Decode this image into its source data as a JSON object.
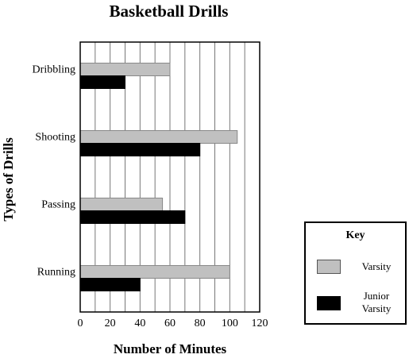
{
  "chart_data": {
    "type": "bar",
    "orientation": "horizontal",
    "title": "Basketball Drills",
    "xlabel": "Number of Minutes",
    "ylabel": "Types of Drills",
    "categories": [
      "Dribbling",
      "Shooting",
      "Passing",
      "Running"
    ],
    "series": [
      {
        "name": "Varsity",
        "values": [
          60,
          105,
          55,
          100
        ],
        "color": "#c0c0c0"
      },
      {
        "name": "Junior Varsity",
        "values": [
          30,
          80,
          70,
          40
        ],
        "color": "#000000"
      }
    ],
    "xlim": [
      0,
      120
    ],
    "xticks": [
      0,
      20,
      40,
      60,
      80,
      100,
      120
    ],
    "grid": "vertical lines every 10 minutes",
    "legend_title": "Key",
    "legend_position": "bottom-right, outside plot"
  }
}
